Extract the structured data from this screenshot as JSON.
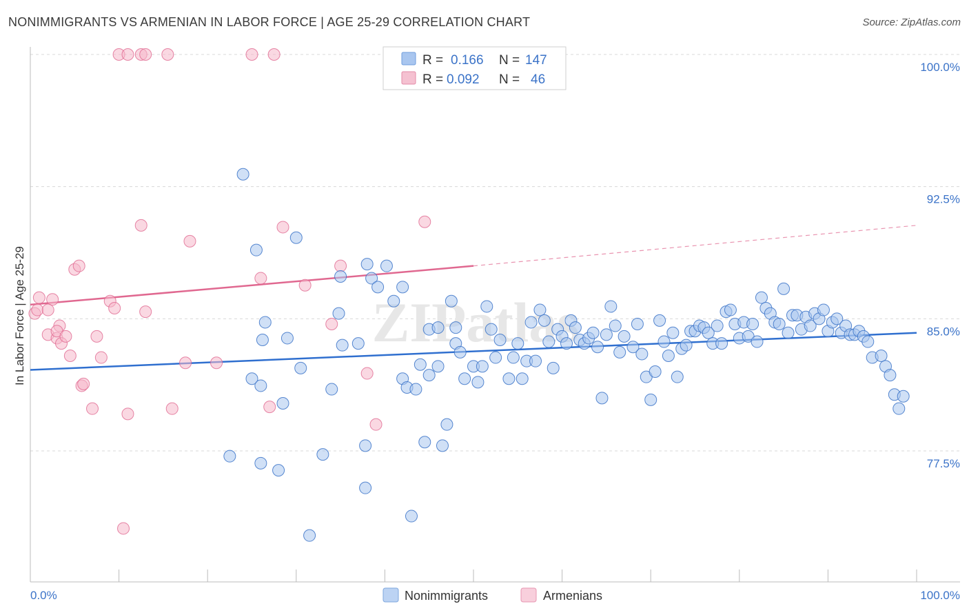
{
  "title": "NONIMMIGRANTS VS ARMENIAN IN LABOR FORCE | AGE 25-29 CORRELATION CHART",
  "source": "Source: ZipAtlas.com",
  "watermark": "ZIPatlas",
  "colors": {
    "blue": "#3b73c8",
    "blue_fill": "#a9c6ef",
    "blue_line": "#2f6fcf",
    "pink": "#e06890",
    "pink_fill": "#f5b8cb",
    "grid": "#d8d8d8",
    "axis": "#bbbbbb"
  },
  "legend": {
    "rows": [
      {
        "r_label": "R =",
        "r_value": "0.166",
        "n_label": "N =",
        "n_value": "147"
      },
      {
        "r_label": "R =",
        "r_value": "0.092",
        "n_label": "N =",
        "n_value": "46"
      }
    ]
  },
  "bottom_legend": [
    "Nonimmigrants",
    "Armenians"
  ],
  "chart_data": {
    "type": "scatter",
    "title": "NONIMMIGRANTS VS ARMENIAN IN LABOR FORCE | AGE 25-29 CORRELATION CHART",
    "xlabel": "",
    "ylabel": "In Labor Force | Age 25-29",
    "xlim": [
      0,
      100
    ],
    "ylim": [
      70.5,
      100.5
    ],
    "x_tick_labels": [
      "0.0%",
      "100.0%"
    ],
    "y_ticks": [
      77.5,
      85.0,
      92.5,
      100.0
    ],
    "y_tick_labels": [
      "77.5%",
      "85.0%",
      "92.5%",
      "100.0%"
    ],
    "grid": true,
    "legend_position": "top-center",
    "series": [
      {
        "name": "Nonimmigrants",
        "color": "#3b73c8",
        "R": 0.166,
        "N": 147,
        "trend": {
          "x": [
            0,
            100
          ],
          "y": [
            82.1,
            84.2
          ]
        },
        "points": [
          [
            24.0,
            93.2
          ],
          [
            25.5,
            88.9
          ],
          [
            30.0,
            89.6
          ],
          [
            34.8,
            85.3
          ],
          [
            35.2,
            83.5
          ],
          [
            37.0,
            83.6
          ],
          [
            38.5,
            87.3
          ],
          [
            39.2,
            86.8
          ],
          [
            40.2,
            88.0
          ],
          [
            41.0,
            86.0
          ],
          [
            42.0,
            86.8
          ],
          [
            38.0,
            88.1
          ],
          [
            35.0,
            87.4
          ],
          [
            26.5,
            84.8
          ],
          [
            26.2,
            83.8
          ],
          [
            29.0,
            83.9
          ],
          [
            30.5,
            82.2
          ],
          [
            25.0,
            81.6
          ],
          [
            26.0,
            81.2
          ],
          [
            28.5,
            80.2
          ],
          [
            34.0,
            81.0
          ],
          [
            22.5,
            77.2
          ],
          [
            26.0,
            76.8
          ],
          [
            28.0,
            76.4
          ],
          [
            33.0,
            77.3
          ],
          [
            37.8,
            77.8
          ],
          [
            37.8,
            75.4
          ],
          [
            31.5,
            72.7
          ],
          [
            43.0,
            73.8
          ],
          [
            42.0,
            81.6
          ],
          [
            42.5,
            81.1
          ],
          [
            43.5,
            81.0
          ],
          [
            44.0,
            82.4
          ],
          [
            45.0,
            81.8
          ],
          [
            46.0,
            82.3
          ],
          [
            44.5,
            78.0
          ],
          [
            46.5,
            77.8
          ],
          [
            47.0,
            79.0
          ],
          [
            47.5,
            86.0
          ],
          [
            45.0,
            84.4
          ],
          [
            46.0,
            84.5
          ],
          [
            48.0,
            84.5
          ],
          [
            48.0,
            83.6
          ],
          [
            48.5,
            83.1
          ],
          [
            49.0,
            81.6
          ],
          [
            50.0,
            82.3
          ],
          [
            50.5,
            81.4
          ],
          [
            51.0,
            82.3
          ],
          [
            51.5,
            85.7
          ],
          [
            52.0,
            84.4
          ],
          [
            52.5,
            82.8
          ],
          [
            53.0,
            83.8
          ],
          [
            54.0,
            81.6
          ],
          [
            54.5,
            82.8
          ],
          [
            55.0,
            83.6
          ],
          [
            55.5,
            81.6
          ],
          [
            56.0,
            82.6
          ],
          [
            56.5,
            84.8
          ],
          [
            57.0,
            82.6
          ],
          [
            57.5,
            85.5
          ],
          [
            58.0,
            84.9
          ],
          [
            58.5,
            83.7
          ],
          [
            59.0,
            82.2
          ],
          [
            59.5,
            84.4
          ],
          [
            60.0,
            84.0
          ],
          [
            60.5,
            83.6
          ],
          [
            61.0,
            84.9
          ],
          [
            61.5,
            84.5
          ],
          [
            62.0,
            83.8
          ],
          [
            62.5,
            83.6
          ],
          [
            63.0,
            83.9
          ],
          [
            63.5,
            84.2
          ],
          [
            64.0,
            83.4
          ],
          [
            64.5,
            80.5
          ],
          [
            65.0,
            84.1
          ],
          [
            65.5,
            85.7
          ],
          [
            66.0,
            84.6
          ],
          [
            66.5,
            83.1
          ],
          [
            67.0,
            84.0
          ],
          [
            68.0,
            83.4
          ],
          [
            68.5,
            84.7
          ],
          [
            69.0,
            83.0
          ],
          [
            69.5,
            81.7
          ],
          [
            70.0,
            80.4
          ],
          [
            70.5,
            82.0
          ],
          [
            71.0,
            84.9
          ],
          [
            71.5,
            83.7
          ],
          [
            72.0,
            82.9
          ],
          [
            72.5,
            84.2
          ],
          [
            73.0,
            81.7
          ],
          [
            73.5,
            83.3
          ],
          [
            74.0,
            83.5
          ],
          [
            74.5,
            84.3
          ],
          [
            75.0,
            84.3
          ],
          [
            75.5,
            84.6
          ],
          [
            76.0,
            84.5
          ],
          [
            76.5,
            84.2
          ],
          [
            77.0,
            83.6
          ],
          [
            77.5,
            84.6
          ],
          [
            78.0,
            83.6
          ],
          [
            78.5,
            85.4
          ],
          [
            79.0,
            85.5
          ],
          [
            79.5,
            84.7
          ],
          [
            80.0,
            83.9
          ],
          [
            80.5,
            84.8
          ],
          [
            81.0,
            84.0
          ],
          [
            81.5,
            84.7
          ],
          [
            82.0,
            83.7
          ],
          [
            82.5,
            86.2
          ],
          [
            83.0,
            85.6
          ],
          [
            83.5,
            85.3
          ],
          [
            84.0,
            84.8
          ],
          [
            84.5,
            84.7
          ],
          [
            85.0,
            86.7
          ],
          [
            85.5,
            84.2
          ],
          [
            86.0,
            85.2
          ],
          [
            86.5,
            85.2
          ],
          [
            87.0,
            84.4
          ],
          [
            87.5,
            85.1
          ],
          [
            88.0,
            84.6
          ],
          [
            88.5,
            85.3
          ],
          [
            89.0,
            85.0
          ],
          [
            89.5,
            85.5
          ],
          [
            90.0,
            84.3
          ],
          [
            90.5,
            84.8
          ],
          [
            91.0,
            85.0
          ],
          [
            91.5,
            84.2
          ],
          [
            92.0,
            84.6
          ],
          [
            92.5,
            84.1
          ],
          [
            93.0,
            84.1
          ],
          [
            93.5,
            84.3
          ],
          [
            94.0,
            84.0
          ],
          [
            94.5,
            83.7
          ],
          [
            95.0,
            82.8
          ],
          [
            96.0,
            82.9
          ],
          [
            96.5,
            82.3
          ],
          [
            97.0,
            81.8
          ],
          [
            97.5,
            80.7
          ],
          [
            98.0,
            79.9
          ],
          [
            98.5,
            80.6
          ]
        ]
      },
      {
        "name": "Armenians",
        "color": "#e06890",
        "R": 0.092,
        "N": 46,
        "trend": {
          "x": [
            0,
            50
          ],
          "y": [
            85.8,
            88.0
          ]
        },
        "trend_extended": {
          "x": [
            50,
            100
          ],
          "y": [
            88.0,
            90.3
          ]
        },
        "points": [
          [
            10.0,
            100.0
          ],
          [
            11.0,
            100.0
          ],
          [
            12.5,
            100.0
          ],
          [
            13.0,
            100.0
          ],
          [
            15.5,
            100.0
          ],
          [
            25.0,
            100.0
          ],
          [
            27.5,
            100.0
          ],
          [
            0.5,
            85.3
          ],
          [
            0.8,
            85.5
          ],
          [
            1.0,
            86.2
          ],
          [
            2.0,
            84.1
          ],
          [
            2.5,
            86.1
          ],
          [
            2.0,
            85.5
          ],
          [
            3.0,
            83.9
          ],
          [
            3.3,
            84.6
          ],
          [
            3.5,
            83.6
          ],
          [
            3.0,
            84.3
          ],
          [
            4.0,
            84.0
          ],
          [
            4.5,
            82.9
          ],
          [
            5.0,
            87.8
          ],
          [
            5.5,
            88.0
          ],
          [
            5.8,
            81.2
          ],
          [
            6.0,
            81.3
          ],
          [
            7.0,
            79.9
          ],
          [
            8.0,
            82.8
          ],
          [
            7.5,
            84.0
          ],
          [
            9.0,
            86.0
          ],
          [
            9.5,
            85.6
          ],
          [
            11.0,
            79.6
          ],
          [
            12.5,
            90.3
          ],
          [
            13.0,
            85.4
          ],
          [
            16.0,
            79.9
          ],
          [
            17.5,
            82.5
          ],
          [
            18.0,
            89.4
          ],
          [
            21.0,
            82.5
          ],
          [
            26.0,
            87.3
          ],
          [
            27.0,
            80.0
          ],
          [
            28.5,
            90.2
          ],
          [
            31.0,
            86.9
          ],
          [
            34.0,
            84.7
          ],
          [
            35.0,
            88.0
          ],
          [
            38.0,
            81.9
          ],
          [
            39.0,
            79.0
          ],
          [
            44.5,
            90.5
          ],
          [
            10.5,
            73.1
          ]
        ]
      }
    ]
  }
}
